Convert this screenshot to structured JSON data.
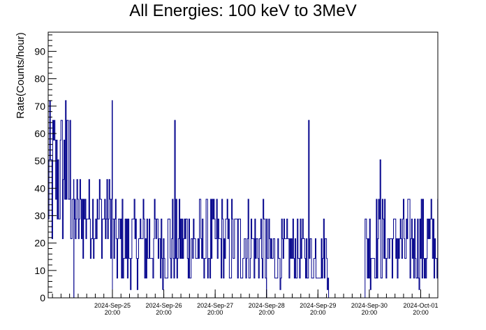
{
  "chart_data": {
    "type": "line",
    "title": "All Energies:  100 keV to 3MeV",
    "xlabel": "",
    "ylabel": "Rate(Counts/hour)",
    "ylim": [
      0,
      97
    ],
    "yticks": [
      0,
      10,
      20,
      30,
      40,
      50,
      60,
      70,
      80,
      90
    ],
    "xlim": [
      "2024-Sep-24 14:00",
      "2024-Oct-02 04:00"
    ],
    "xticks": [
      {
        "date": "2024-Sep-25",
        "time": "20:00"
      },
      {
        "date": "2024-Sep-26",
        "time": "20:00"
      },
      {
        "date": "2024-Sep-27",
        "time": "20:00"
      },
      {
        "date": "2024-Sep-28",
        "time": "20:00"
      },
      {
        "date": "2024-Sep-29",
        "time": "20:00"
      },
      {
        "date": "2024-Sep-30",
        "time": "20:00"
      },
      {
        "date": "2024-Oct-01",
        "time": "20:00"
      }
    ],
    "series_color": "#00008b",
    "grid": false,
    "gap": [
      "2024-Sep-30 01:00",
      "2024-Sep-30 18:00"
    ],
    "segments": [
      {
        "x_start": "2024-Sep-24 14:00",
        "x_end": "2024-Sep-25 02:00",
        "typical_range": [
          15,
          72
        ],
        "max": 72
      },
      {
        "x_start": "2024-Sep-25 02:00",
        "x_end": "2024-Sep-25 20:00",
        "typical_range": [
          15,
          45
        ],
        "max": 72
      },
      {
        "x_start": "2024-Sep-25 20:00",
        "x_end": "2024-Sep-28 20:00",
        "typical_range": [
          3,
          36
        ],
        "max": 65
      },
      {
        "x_start": "2024-Sep-28 20:00",
        "x_end": "2024-Sep-30 01:00",
        "typical_range": [
          3,
          28
        ],
        "max": 65
      },
      {
        "x_start": "2024-Sep-30 18:00",
        "x_end": "2024-Oct-02 04:00",
        "typical_range": [
          3,
          36
        ],
        "max": 50
      }
    ]
  }
}
